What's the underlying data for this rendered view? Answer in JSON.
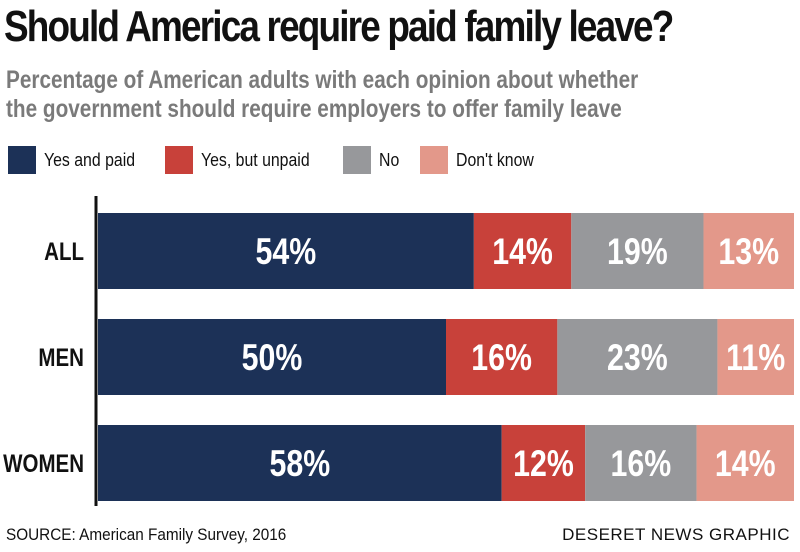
{
  "header": {
    "title": "Should America require paid family leave?",
    "subtitle_line1": "Percentage of American adults with each opinion about whether",
    "subtitle_line2": "the government should require employers to offer family leave"
  },
  "footer": {
    "source": "SOURCE: American Family Survey, 2016",
    "credit": "DESERET NEWS GRAPHIC"
  },
  "chart_data": {
    "type": "bar",
    "orientation": "horizontal",
    "stacked": true,
    "title": "Should America require paid family leave?",
    "subtitle": "Percentage of American adults with each opinion about whether the government should require employers to offer family leave",
    "categories": [
      "ALL",
      "MEN",
      "WOMEN"
    ],
    "xlim": [
      0,
      100
    ],
    "grid": false,
    "legend_position": "top-left",
    "series": [
      {
        "name": "Yes and paid",
        "color": "#1c3157",
        "values": [
          54,
          50,
          58
        ]
      },
      {
        "name": "Yes, but unpaid",
        "color": "#c8413a",
        "values": [
          14,
          16,
          12
        ]
      },
      {
        "name": "No",
        "color": "#97989b",
        "values": [
          19,
          23,
          16
        ]
      },
      {
        "name": "Don't know",
        "color": "#e3988a",
        "values": [
          13,
          11,
          14
        ]
      }
    ]
  }
}
